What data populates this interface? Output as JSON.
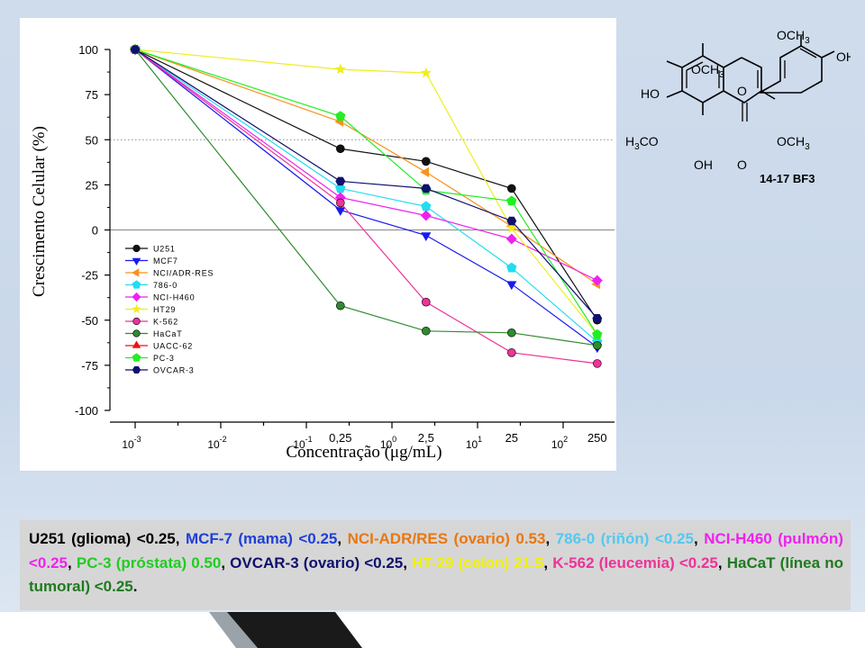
{
  "chart_data": {
    "type": "line",
    "ylabel": "Crescimento Celular (%)",
    "xlabel": "Concentração (μg/mL)",
    "ylim": [
      -100,
      100
    ],
    "yticks": [
      100,
      75,
      50,
      25,
      0,
      -25,
      -50,
      -75,
      -100
    ],
    "x_scale": "log",
    "xticks": [
      {
        "value": 0.001,
        "base": "10",
        "exp": "-3"
      },
      {
        "value": 0.01,
        "base": "10",
        "exp": "-2"
      },
      {
        "value": 0.1,
        "base": "10",
        "exp": "-1"
      },
      {
        "value": 1,
        "base": "10",
        "exp": "0"
      },
      {
        "value": 10,
        "base": "10",
        "exp": "1"
      },
      {
        "value": 100,
        "base": "10",
        "exp": "2"
      }
    ],
    "xlabels_extra": [
      {
        "value": 0.25,
        "label": "0,25"
      },
      {
        "value": 2.5,
        "label": "2,5"
      },
      {
        "value": 25,
        "label": "25"
      },
      {
        "value": 250,
        "label": "250"
      }
    ],
    "reference_line_y": 50,
    "zero_line_y": 0,
    "x": [
      0.001,
      0.25,
      2.5,
      25,
      250
    ],
    "legend_position": "lower-left",
    "series": [
      {
        "name": "U251",
        "color": "#111111",
        "marker": "circle",
        "values": [
          100,
          45,
          38,
          23,
          -50
        ]
      },
      {
        "name": "MCF7",
        "color": "#1a1aee",
        "marker": "triangle-down",
        "values": [
          100,
          11,
          -3,
          -30,
          -65
        ]
      },
      {
        "name": "NCI/ADR-RES",
        "color": "#f7931e",
        "marker": "triangle-left",
        "values": [
          100,
          60,
          32,
          2,
          -30
        ]
      },
      {
        "name": "786-0",
        "color": "#22ddee",
        "marker": "pentagon",
        "values": [
          100,
          23,
          13,
          -21,
          -62
        ]
      },
      {
        "name": "NCI-H460",
        "color": "#ee22ee",
        "marker": "diamond",
        "values": [
          100,
          18,
          8,
          -5,
          -28
        ]
      },
      {
        "name": "HT29",
        "color": "#eeee22",
        "marker": "star",
        "values": [
          100,
          89,
          87,
          1,
          -58
        ]
      },
      {
        "name": "K-562",
        "color": "#ee3399",
        "marker": "circle",
        "values": [
          100,
          15,
          -40,
          -68,
          -74
        ]
      },
      {
        "name": "HaCaT",
        "color": "#2e8b2e",
        "marker": "circle",
        "values": [
          100,
          -42,
          -56,
          -57,
          -64
        ]
      },
      {
        "name": "UACC-62",
        "color": "#ee1111",
        "marker": "triangle-up",
        "values": [
          100,
          null,
          null,
          null,
          null
        ]
      },
      {
        "name": "PC-3",
        "color": "#22ee22",
        "marker": "pentagon",
        "values": [
          100,
          63,
          22,
          16,
          -58
        ]
      },
      {
        "name": "OVCAR-3",
        "color": "#10106e",
        "marker": "hexagon",
        "values": [
          100,
          27,
          23,
          5,
          -49
        ]
      }
    ]
  },
  "structure": {
    "label": "14-17 BF3",
    "groups": {
      "och3_top": "OCH",
      "oh_right": "OH",
      "och3_mid": "OCH",
      "ho_left": "HO",
      "ring_o": "O",
      "h3co": "H",
      "h3co_rest": "CO",
      "och3_right": "OCH",
      "oh_bottom": "OH",
      "carbonyl_o": "O",
      "sub3": "3"
    }
  },
  "caption": {
    "segments": [
      {
        "text": "U251 (glioma) <0.25, ",
        "color": "#000000"
      },
      {
        "text": "MCF-7 (mama) <0.25",
        "color": "#1f3fd6"
      },
      {
        "text": ", ",
        "color": "#000000"
      },
      {
        "text": "NCI-ADR/RES (ovario) 0.53",
        "color": "#e87710"
      },
      {
        "text": ", ",
        "color": "#000000"
      },
      {
        "text": "786-0 (riñón) <0.25",
        "color": "#55c8ee"
      },
      {
        "text": ", ",
        "color": "#000000"
      },
      {
        "text": "NCI-H460 (pulmón) <0.25",
        "color": "#ee22ee"
      },
      {
        "text": ", ",
        "color": "#000000"
      },
      {
        "text": "PC-3 (próstata) 0.50",
        "color": "#22cc22"
      },
      {
        "text": ", ",
        "color": "#000000"
      },
      {
        "text": "OVCAR-3 (ovario) <0.25",
        "color": "#10106e"
      },
      {
        "text": ", ",
        "color": "#000000"
      },
      {
        "text": "HT-29 (colon) 21.5",
        "color": "#f2f200"
      },
      {
        "text": ", ",
        "color": "#000000"
      },
      {
        "text": "K-562 (leucemia) <0.25",
        "color": "#ee3399"
      },
      {
        "text": ", ",
        "color": "#000000"
      },
      {
        "text": "HaCaT (línea no tumoral) <0.25",
        "color": "#1f7a1f"
      },
      {
        "text": ".",
        "color": "#000000"
      }
    ]
  }
}
